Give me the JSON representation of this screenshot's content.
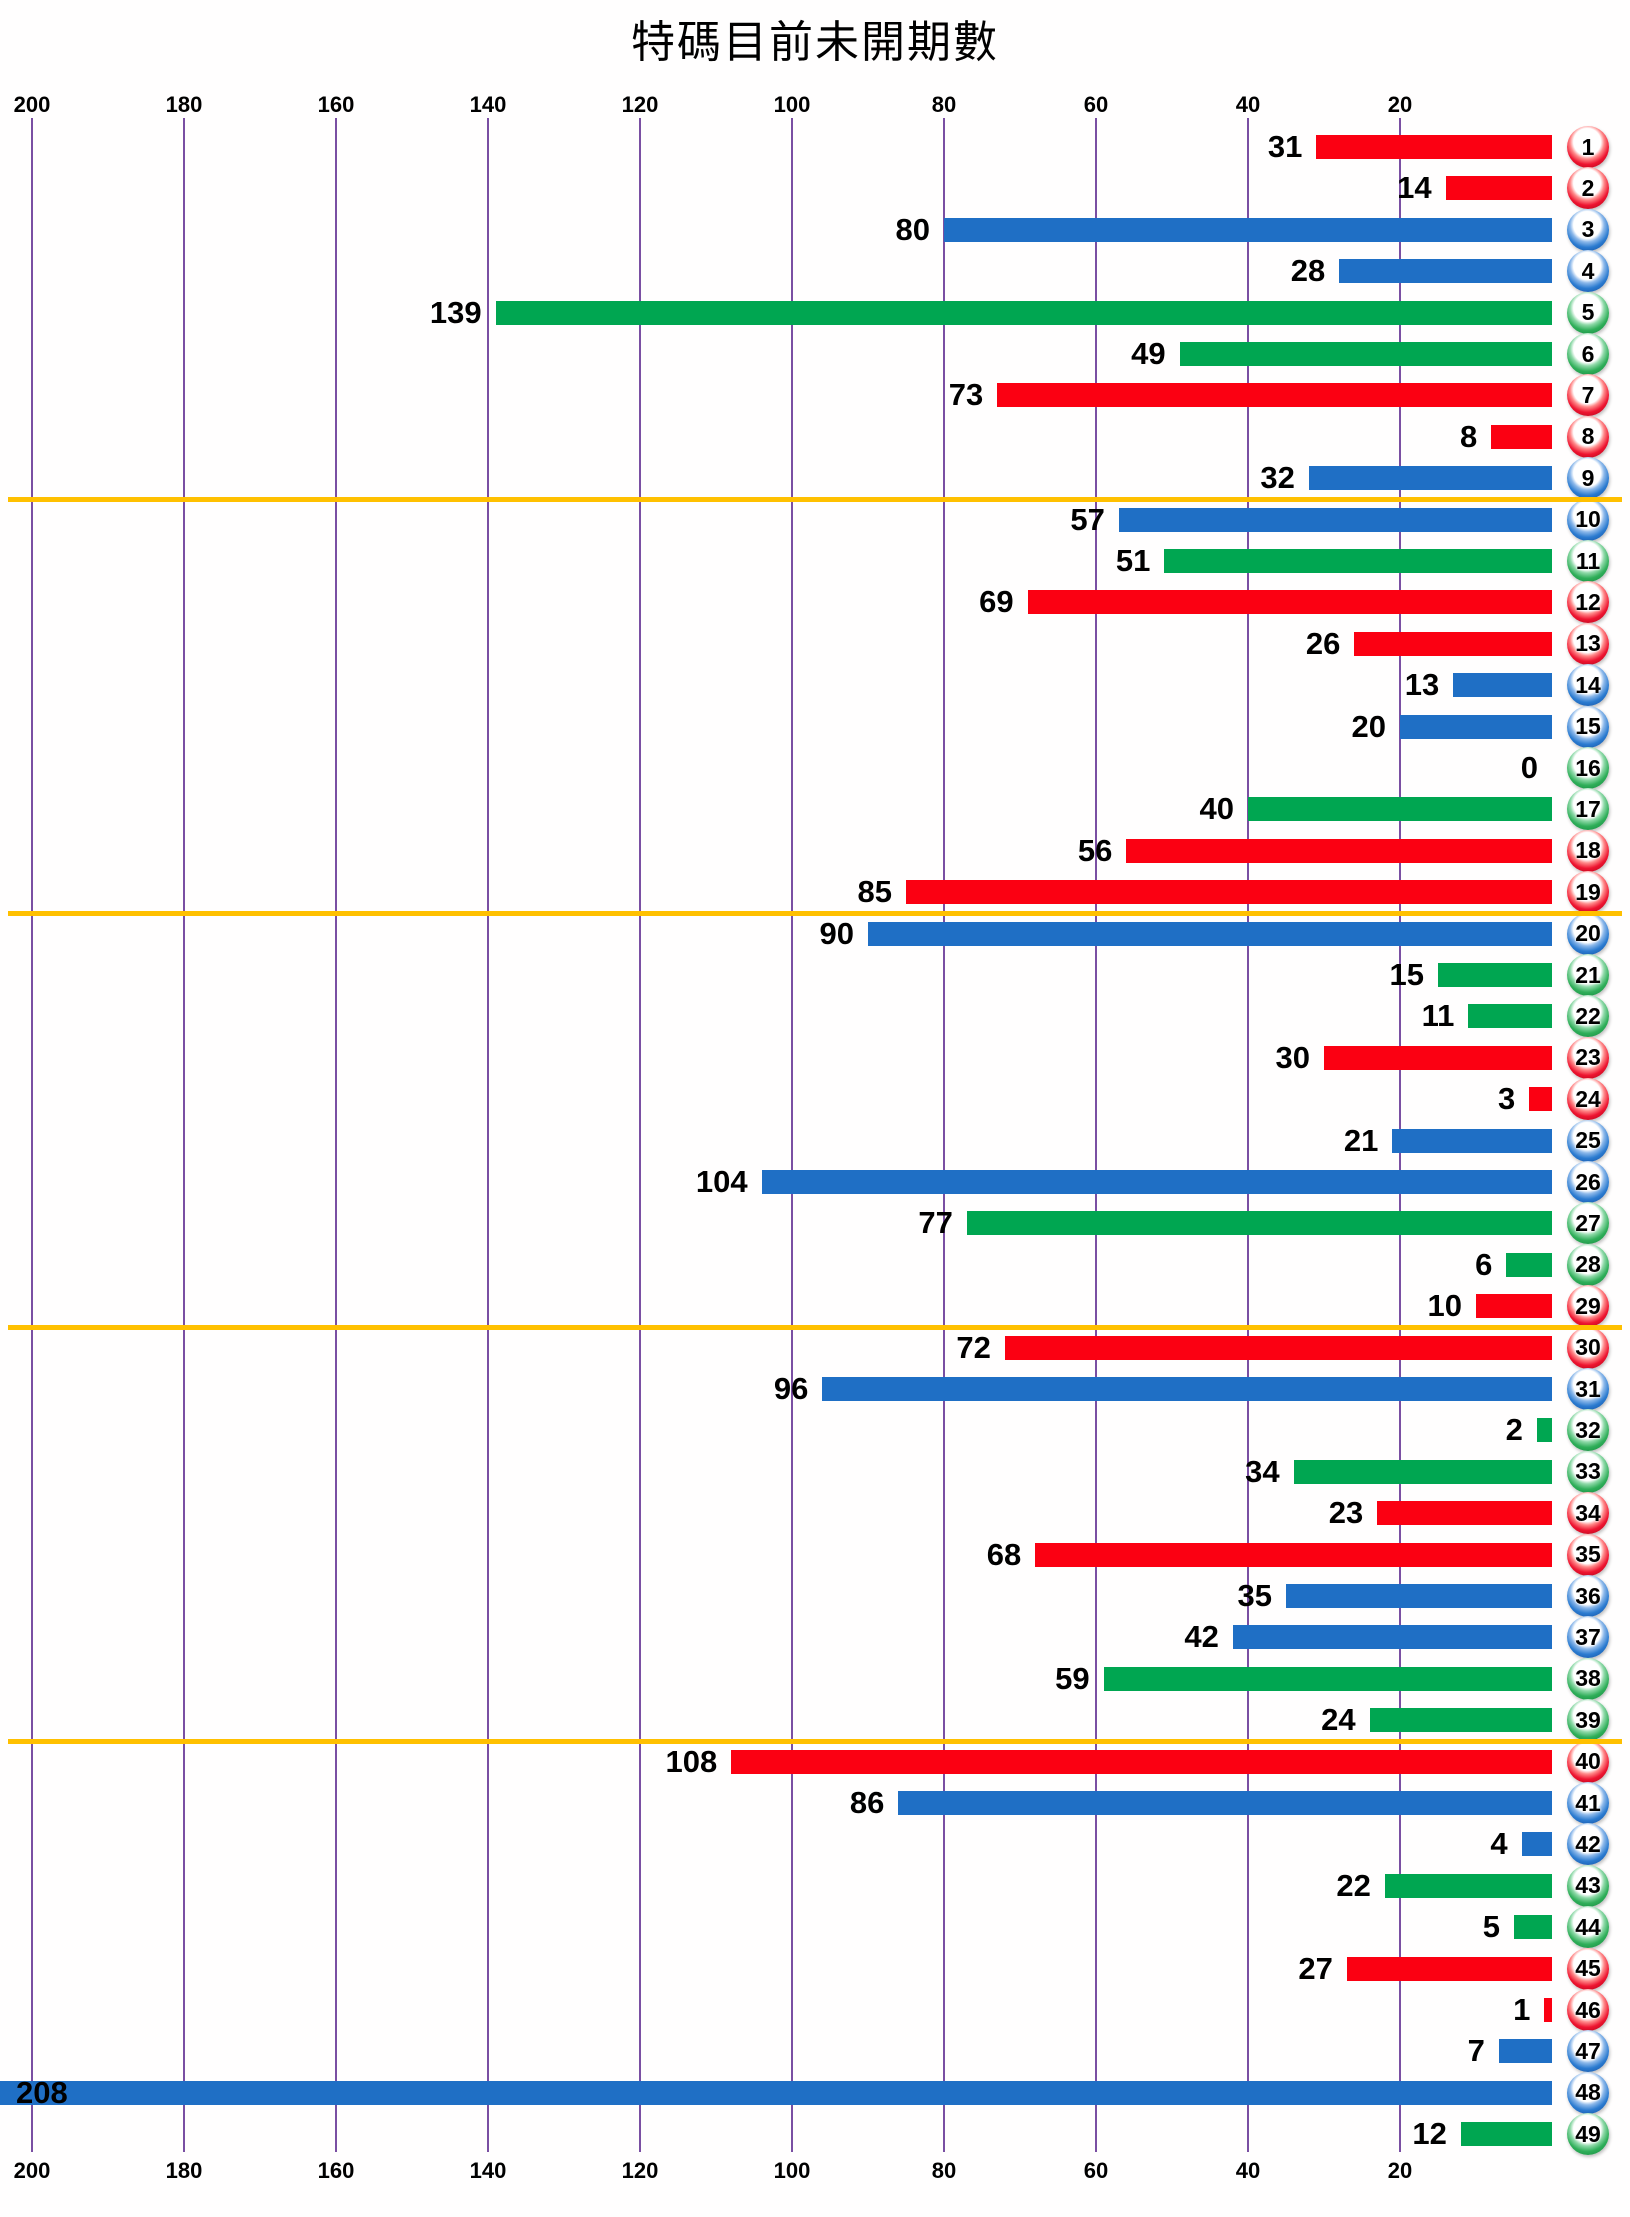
{
  "title": "特碼目前未開期數",
  "axis": {
    "top_ticks": [
      200,
      180,
      160,
      140,
      120,
      100,
      80,
      60,
      40,
      20
    ],
    "bottom_ticks": [
      200,
      180,
      160,
      140,
      120,
      100,
      80,
      60,
      40,
      20
    ]
  },
  "colors": {
    "red": "#fb0012",
    "blue": "#1f6fc5",
    "green": "#00a651",
    "gridline": "#7a4fa3",
    "separator": "#ffc000"
  },
  "chart_data": {
    "type": "bar",
    "orientation": "horizontal-right-anchored",
    "title": "特碼目前未開期數",
    "xlabel": "",
    "ylabel": "",
    "xlim": [
      0,
      200
    ],
    "grid": true,
    "categories": [
      1,
      2,
      3,
      4,
      5,
      6,
      7,
      8,
      9,
      10,
      11,
      12,
      13,
      14,
      15,
      16,
      17,
      18,
      19,
      20,
      21,
      22,
      23,
      24,
      25,
      26,
      27,
      28,
      29,
      30,
      31,
      32,
      33,
      34,
      35,
      36,
      37,
      38,
      39,
      40,
      41,
      42,
      43,
      44,
      45,
      46,
      47,
      48,
      49
    ],
    "values": [
      31,
      14,
      80,
      28,
      139,
      49,
      73,
      8,
      32,
      57,
      51,
      69,
      26,
      13,
      20,
      0,
      40,
      56,
      85,
      90,
      15,
      11,
      30,
      3,
      21,
      104,
      77,
      6,
      10,
      72,
      96,
      2,
      34,
      23,
      68,
      35,
      42,
      59,
      24,
      108,
      86,
      4,
      22,
      5,
      27,
      1,
      7,
      208,
      12
    ],
    "ball_color_groups": [
      "red",
      "red",
      "blue",
      "blue",
      "green",
      "green",
      "red",
      "red",
      "blue",
      "blue",
      "green",
      "red",
      "red",
      "blue",
      "blue",
      "green",
      "green",
      "red",
      "red",
      "blue",
      "green",
      "green",
      "red",
      "red",
      "blue",
      "blue",
      "green",
      "green",
      "red",
      "red",
      "blue",
      "green",
      "green",
      "red",
      "red",
      "blue",
      "blue",
      "green",
      "green",
      "red",
      "blue",
      "blue",
      "green",
      "green",
      "red",
      "red",
      "blue",
      "blue",
      "green"
    ],
    "separators_after_rows": [
      9,
      19,
      29,
      39
    ],
    "legend": null
  }
}
